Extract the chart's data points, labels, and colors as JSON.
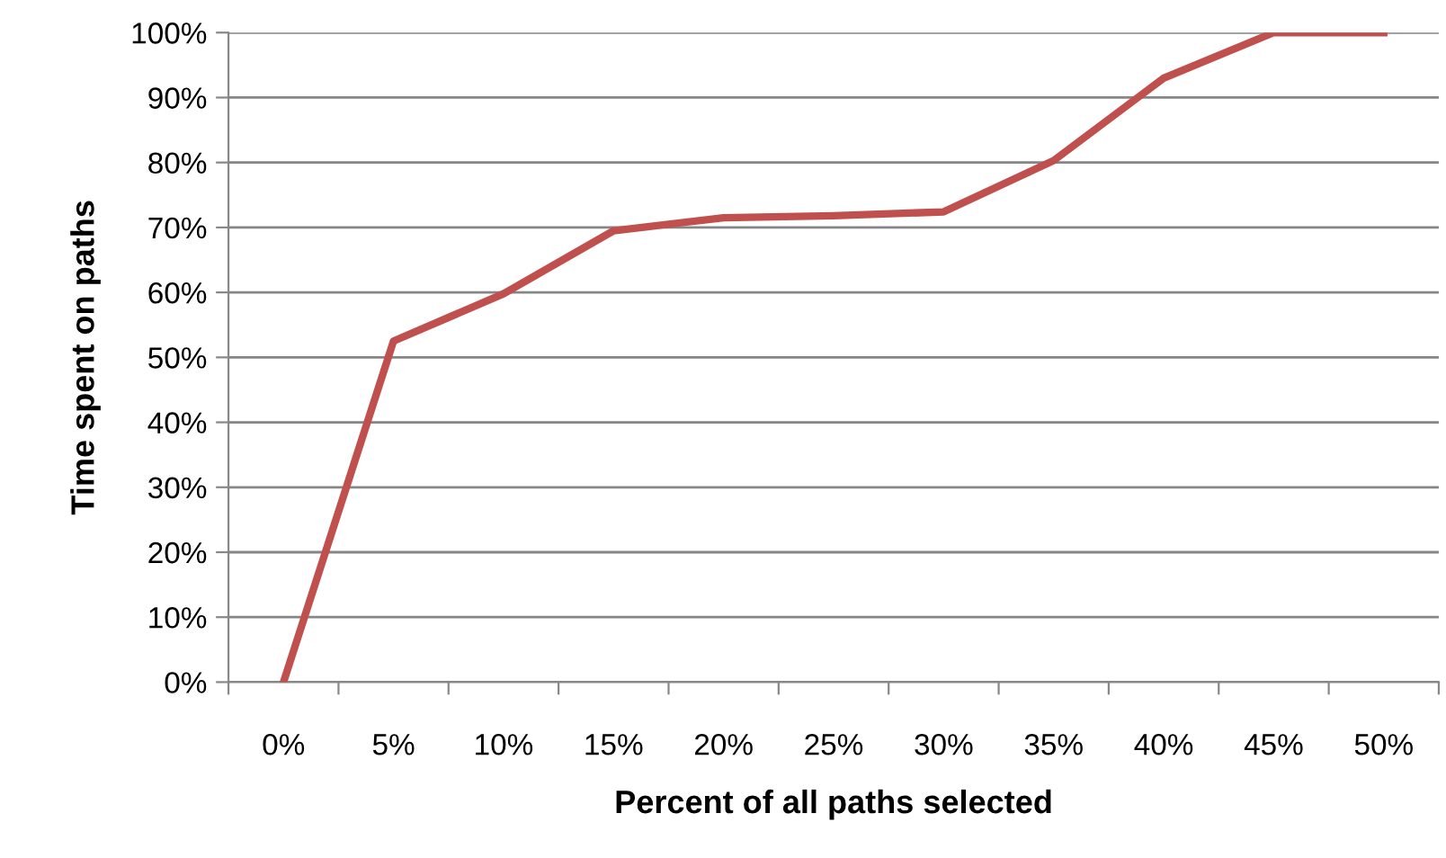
{
  "chart_data": {
    "type": "line",
    "xlabel": "Percent of all paths selected",
    "ylabel": "Time spent on paths",
    "categories": [
      "0%",
      "5%",
      "10%",
      "15%",
      "20%",
      "25%",
      "30%",
      "35%",
      "40%",
      "45%",
      "50%"
    ],
    "series": [
      {
        "color": "#c0504d",
        "values": [
          0,
          52.5,
          59.8,
          69.5,
          71.5,
          71.8,
          72.4,
          80.3,
          93,
          100,
          100
        ]
      }
    ],
    "ylim": [
      0,
      100
    ],
    "yticks": [
      {
        "value": 0,
        "label": "0%"
      },
      {
        "value": 10,
        "label": "10%"
      },
      {
        "value": 20,
        "label": "20%"
      },
      {
        "value": 30,
        "label": "30%"
      },
      {
        "value": 40,
        "label": "40%"
      },
      {
        "value": 50,
        "label": "50%"
      },
      {
        "value": 60,
        "label": "60%"
      },
      {
        "value": 70,
        "label": "70%"
      },
      {
        "value": 80,
        "label": "80%"
      },
      {
        "value": 90,
        "label": "90%"
      },
      {
        "value": 100,
        "label": "100%"
      }
    ],
    "grid": "y",
    "marker": "none",
    "line_style": "solid"
  }
}
